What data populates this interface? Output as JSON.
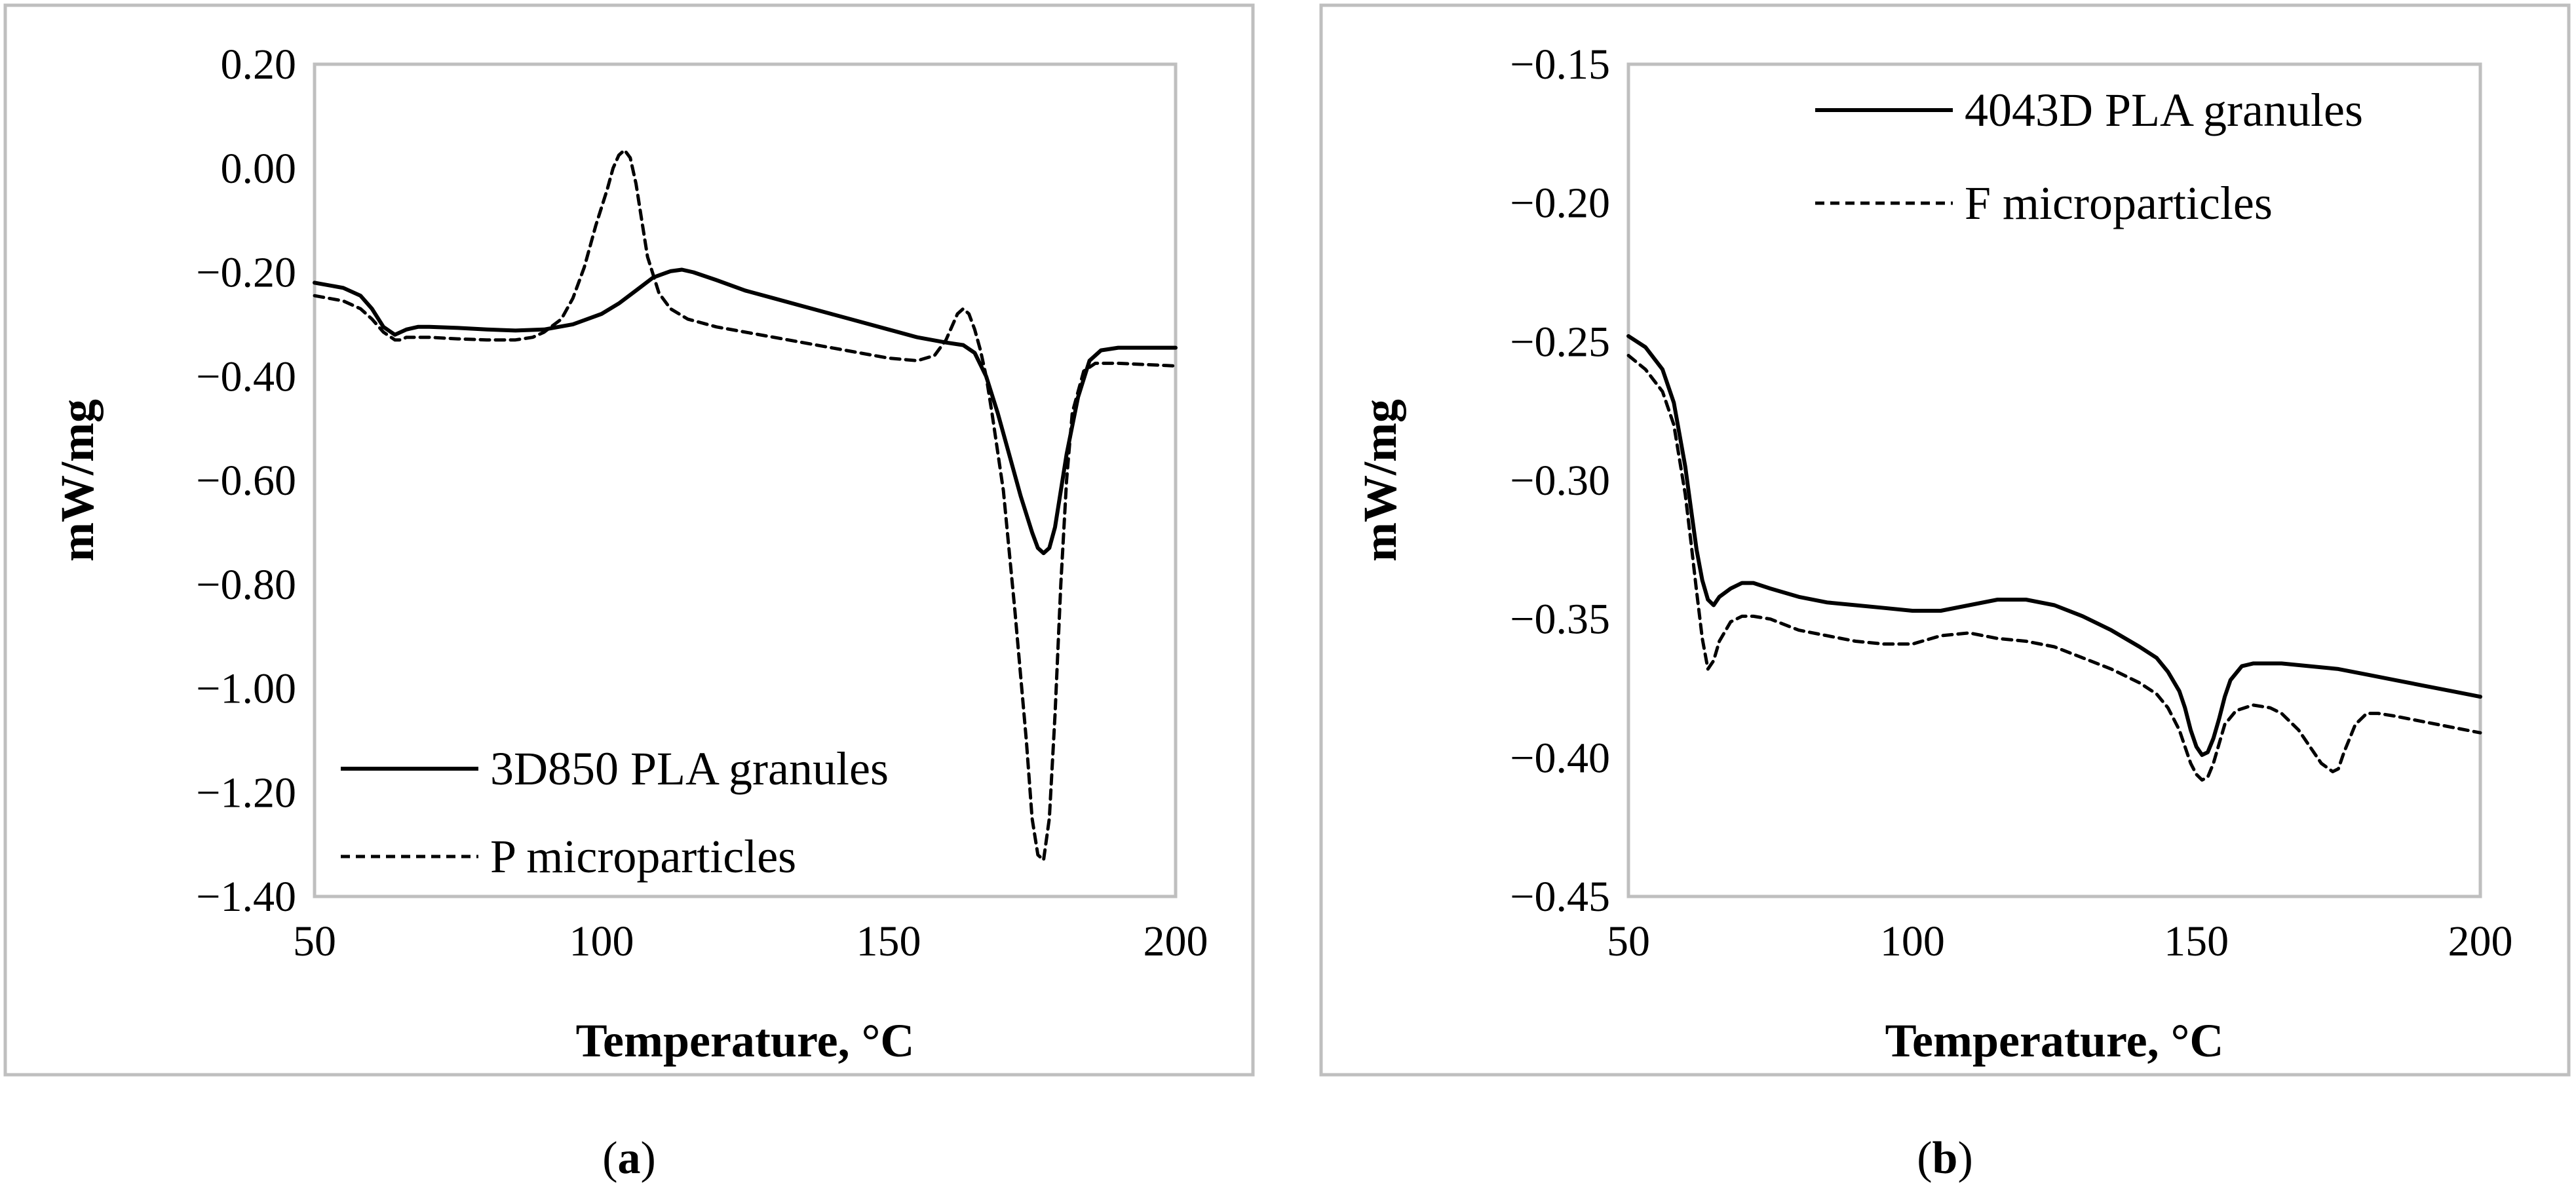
{
  "chart_data": [
    {
      "type": "line",
      "panel": "a",
      "caption_open": "(",
      "caption_letter": "a",
      "caption_close": ")",
      "title": "",
      "xlabel": "Temperature, °C",
      "ylabel": "mW/mg",
      "xlim": [
        50,
        200
      ],
      "ylim": [
        -1.4,
        0.2
      ],
      "xticks": [
        50,
        100,
        150,
        200
      ],
      "xtick_labels": [
        "50",
        "100",
        "150",
        "200"
      ],
      "yticks": [
        0.2,
        0.0,
        -0.2,
        -0.4,
        -0.6,
        -0.8,
        -1.0,
        -1.2,
        -1.4
      ],
      "ytick_labels": [
        "0.20",
        "0.00",
        "−0.20",
        "−0.40",
        "−0.60",
        "−0.80",
        "−1.00",
        "−1.20",
        "−1.40"
      ],
      "grid": false,
      "legend_position": "bottom-left",
      "series": [
        {
          "name": "3D850 PLA granules",
          "style": "solid",
          "x": [
            50,
            55,
            58,
            60,
            62,
            64,
            65,
            66,
            68,
            70,
            75,
            80,
            85,
            90,
            95,
            100,
            103,
            106,
            109,
            112,
            114,
            116,
            120,
            125,
            130,
            135,
            140,
            145,
            150,
            155,
            160,
            163,
            165,
            167,
            169,
            171,
            173,
            175,
            176,
            177,
            178,
            179,
            180,
            181,
            183,
            185,
            187,
            190,
            195,
            200
          ],
          "y": [
            -0.22,
            -0.23,
            -0.245,
            -0.27,
            -0.305,
            -0.32,
            -0.315,
            -0.31,
            -0.305,
            -0.305,
            -0.307,
            -0.31,
            -0.312,
            -0.31,
            -0.3,
            -0.28,
            -0.26,
            -0.235,
            -0.21,
            -0.198,
            -0.195,
            -0.2,
            -0.215,
            -0.235,
            -0.25,
            -0.265,
            -0.28,
            -0.295,
            -0.31,
            -0.325,
            -0.335,
            -0.34,
            -0.355,
            -0.4,
            -0.47,
            -0.55,
            -0.63,
            -0.7,
            -0.73,
            -0.74,
            -0.73,
            -0.69,
            -0.62,
            -0.55,
            -0.44,
            -0.37,
            -0.35,
            -0.345,
            -0.345,
            -0.345
          ]
        },
        {
          "name": "P microparticles",
          "style": "dashed",
          "x": [
            50,
            55,
            58,
            60,
            62,
            64,
            65,
            66,
            68,
            70,
            75,
            80,
            85,
            88,
            90,
            93,
            95,
            97,
            99,
            101,
            102,
            103,
            104,
            105,
            106,
            107,
            108,
            110,
            112,
            115,
            120,
            130,
            140,
            150,
            155,
            158,
            160,
            161,
            162,
            163,
            164,
            165,
            166,
            167,
            168,
            170,
            172,
            174,
            175,
            176,
            177,
            178,
            179,
            180,
            181,
            182,
            184,
            186,
            190,
            200
          ],
          "y": [
            -0.245,
            -0.255,
            -0.27,
            -0.29,
            -0.315,
            -0.33,
            -0.33,
            -0.325,
            -0.325,
            -0.325,
            -0.328,
            -0.33,
            -0.33,
            -0.325,
            -0.315,
            -0.29,
            -0.25,
            -0.19,
            -0.11,
            -0.04,
            0.0,
            0.025,
            0.035,
            0.02,
            -0.03,
            -0.1,
            -0.17,
            -0.24,
            -0.27,
            -0.29,
            -0.305,
            -0.325,
            -0.345,
            -0.365,
            -0.37,
            -0.36,
            -0.33,
            -0.305,
            -0.28,
            -0.27,
            -0.28,
            -0.31,
            -0.35,
            -0.4,
            -0.47,
            -0.62,
            -0.85,
            -1.1,
            -1.25,
            -1.32,
            -1.33,
            -1.25,
            -1.05,
            -0.8,
            -0.6,
            -0.47,
            -0.39,
            -0.375,
            -0.375,
            -0.38
          ]
        }
      ]
    },
    {
      "type": "line",
      "panel": "b",
      "caption_open": "(",
      "caption_letter": "b",
      "caption_close": ")",
      "title": "",
      "xlabel": "Temperature, °C",
      "ylabel": "mW/mg",
      "xlim": [
        50,
        200
      ],
      "ylim": [
        -0.45,
        -0.15
      ],
      "xticks": [
        50,
        100,
        150,
        200
      ],
      "xtick_labels": [
        "50",
        "100",
        "150",
        "200"
      ],
      "yticks": [
        -0.15,
        -0.2,
        -0.25,
        -0.3,
        -0.35,
        -0.4,
        -0.45
      ],
      "ytick_labels": [
        "−0.15",
        "−0.20",
        "−0.25",
        "−0.30",
        "−0.35",
        "−0.40",
        "−0.45"
      ],
      "grid": false,
      "legend_position": "top-right",
      "series": [
        {
          "name": "4043D PLA granules",
          "style": "solid",
          "x": [
            50,
            53,
            56,
            58,
            60,
            61,
            62,
            63,
            64,
            65,
            66,
            68,
            70,
            72,
            75,
            80,
            85,
            90,
            95,
            100,
            105,
            110,
            115,
            118,
            120,
            125,
            130,
            135,
            140,
            143,
            145,
            147,
            148,
            149,
            150,
            151,
            152,
            153,
            154,
            155,
            156,
            158,
            160,
            163,
            165,
            170,
            175,
            180,
            185,
            190,
            195,
            200
          ],
          "y": [
            -0.248,
            -0.252,
            -0.26,
            -0.272,
            -0.295,
            -0.31,
            -0.325,
            -0.336,
            -0.343,
            -0.345,
            -0.342,
            -0.339,
            -0.337,
            -0.337,
            -0.339,
            -0.342,
            -0.344,
            -0.345,
            -0.346,
            -0.347,
            -0.347,
            -0.345,
            -0.343,
            -0.343,
            -0.343,
            -0.345,
            -0.349,
            -0.354,
            -0.36,
            -0.364,
            -0.369,
            -0.376,
            -0.382,
            -0.39,
            -0.396,
            -0.399,
            -0.398,
            -0.393,
            -0.386,
            -0.378,
            -0.372,
            -0.367,
            -0.366,
            -0.366,
            -0.366,
            -0.367,
            -0.368,
            -0.37,
            -0.372,
            -0.374,
            -0.376,
            -0.378
          ]
        },
        {
          "name": "F microparticles",
          "style": "dashed",
          "x": [
            50,
            53,
            56,
            58,
            60,
            61,
            62,
            63,
            64,
            65,
            66,
            68,
            70,
            72,
            75,
            80,
            85,
            90,
            95,
            100,
            105,
            110,
            115,
            120,
            125,
            130,
            135,
            140,
            143,
            145,
            147,
            148,
            149,
            150,
            151,
            152,
            153,
            154,
            155,
            157,
            160,
            163,
            165,
            168,
            170,
            172,
            174,
            175,
            176,
            178,
            180,
            182,
            185,
            190,
            195,
            200
          ],
          "y": [
            -0.255,
            -0.26,
            -0.268,
            -0.28,
            -0.305,
            -0.322,
            -0.34,
            -0.357,
            -0.368,
            -0.365,
            -0.358,
            -0.351,
            -0.349,
            -0.349,
            -0.35,
            -0.354,
            -0.356,
            -0.358,
            -0.359,
            -0.359,
            -0.356,
            -0.355,
            -0.357,
            -0.358,
            -0.36,
            -0.364,
            -0.368,
            -0.373,
            -0.377,
            -0.382,
            -0.39,
            -0.396,
            -0.402,
            -0.406,
            -0.408,
            -0.407,
            -0.402,
            -0.395,
            -0.388,
            -0.383,
            -0.381,
            -0.382,
            -0.384,
            -0.39,
            -0.396,
            -0.402,
            -0.405,
            -0.404,
            -0.398,
            -0.388,
            -0.384,
            -0.384,
            -0.385,
            -0.387,
            -0.389,
            -0.391
          ]
        }
      ]
    }
  ]
}
